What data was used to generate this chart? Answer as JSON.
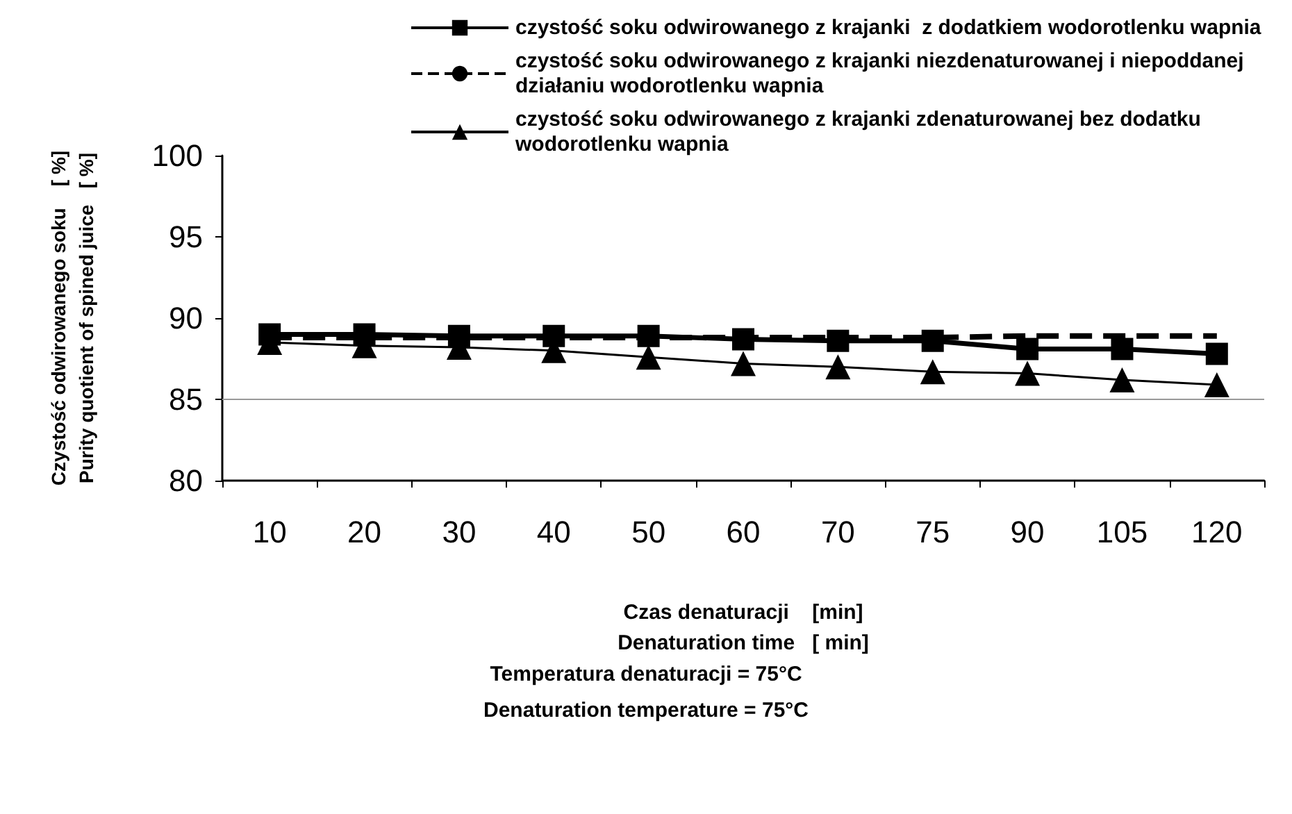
{
  "chart_data": {
    "type": "line",
    "categories": [
      "10",
      "20",
      "30",
      "40",
      "50",
      "60",
      "70",
      "75",
      "90",
      "105",
      "120"
    ],
    "series": [
      {
        "name": "czystość soku odwirowanego z krajanki  z dodatkiem wodorotlenku wapnia",
        "color": "#000000",
        "marker": "square",
        "line_style": "solid",
        "values": [
          89.0,
          89.0,
          88.9,
          88.9,
          88.9,
          88.7,
          88.6,
          88.6,
          88.1,
          88.1,
          87.8
        ]
      },
      {
        "name": "czystość soku odwirowanego z krajanki niezdenaturowanej i niepoddanej działaniu wodorotlenku wapnia",
        "color": "#000000",
        "marker": "none",
        "line_style": "dashed",
        "values": [
          88.8,
          88.8,
          88.8,
          88.8,
          88.8,
          88.8,
          88.8,
          88.8,
          88.9,
          88.9,
          88.9
        ]
      },
      {
        "name": "czystość soku odwirowanego z krajanki zdenaturowanej bez dodatku wodorotlenku wapnia",
        "color": "#000000",
        "marker": "triangle",
        "line_style": "solid",
        "values": [
          88.5,
          88.3,
          88.2,
          88.0,
          87.6,
          87.2,
          87.0,
          86.7,
          86.6,
          86.2,
          85.9
        ]
      }
    ],
    "xlabel": "Czas denaturacji    [min]\nDenaturation time   [ min]",
    "ylabel": "Czystość odwirowanego soku    [ %]\nPurity quotient of spined juice   [ %]",
    "ylim": [
      80,
      100
    ],
    "yticks": [
      80,
      85,
      90,
      95,
      100
    ],
    "ref_lines": [
      {
        "axis": "y",
        "value": 85,
        "color": "#999999"
      }
    ],
    "legend": "top",
    "annotations": [
      "Temperatura denaturacji = 75°C",
      "Denaturation temperature = 75°C"
    ]
  }
}
